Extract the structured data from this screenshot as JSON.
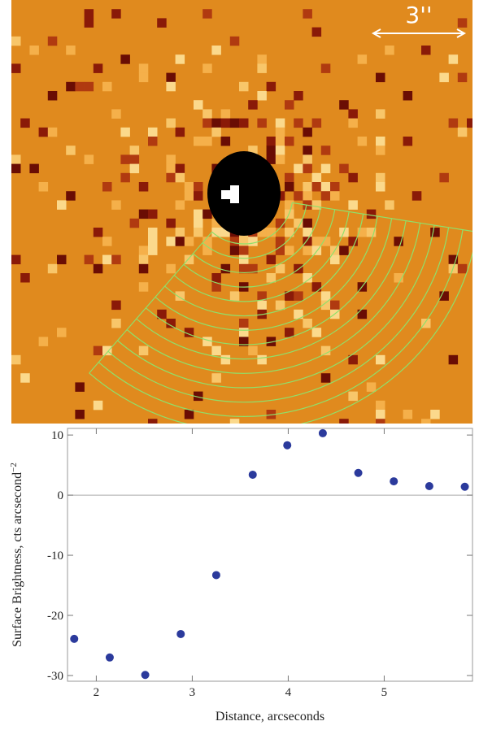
{
  "image": {
    "scale_label": "3''"
  },
  "chart_data": {
    "type": "scatter",
    "xlabel": "Distance, arcseconds",
    "ylabel": "Surface Brightness, cts arcsecond",
    "ylabel_sup": "−2",
    "x": [
      1.77,
      2.14,
      2.51,
      2.88,
      3.25,
      3.63,
      3.99,
      4.36,
      4.73,
      5.1,
      5.47,
      5.84
    ],
    "series": [
      {
        "color": "#2b3a9c",
        "values": [
          -23.9,
          -27.0,
          -29.9,
          -23.1,
          -13.3,
          3.4,
          8.3,
          10.3,
          3.7,
          2.3,
          1.5,
          1.4
        ]
      }
    ],
    "xlim": [
      1.7,
      5.92
    ],
    "ylim": [
      -30.95,
      11.1
    ],
    "xticks": [
      2,
      3,
      4,
      5
    ],
    "yticks": [
      -30,
      -20,
      -10,
      0,
      10
    ],
    "zero_line": true
  }
}
